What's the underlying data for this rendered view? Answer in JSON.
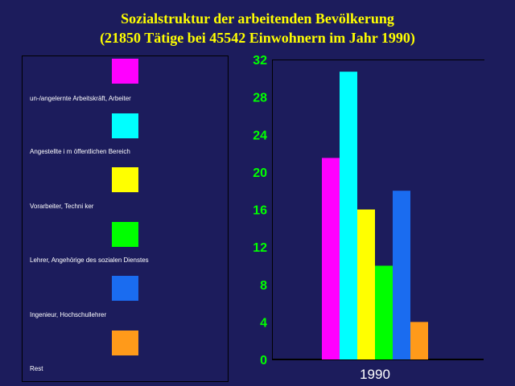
{
  "title_line1": "Sozialstruktur der arbeitenden Bevölkerung",
  "title_line2": "(21850 Tätige bei 45542 Einwohnern im Jahr 1990)",
  "legend": [
    {
      "label": "un-/angelernte Arbeitskräft, Arbeiter",
      "color": "#ff00ff"
    },
    {
      "label": "Angestellte i m öffentlichen Bereich",
      "color": "#00ffff"
    },
    {
      "label": "Vorarbeiter, Techni ker",
      "color": "#ffff00"
    },
    {
      "label": "Lehrer, Angehörige des sozialen Dienstes",
      "color": "#00ff00"
    },
    {
      "label": "Ingenieur, Hochschullehrer",
      "color": "#1a6cf0"
    },
    {
      "label": "Rest",
      "color": "#ff9a1a"
    }
  ],
  "chart_data": {
    "type": "bar",
    "categories": [
      "1990"
    ],
    "series": [
      {
        "name": "un-/angelernte Arbeitskräft, Arbeiter",
        "values": [
          21.5
        ],
        "color": "#ff00ff"
      },
      {
        "name": "Angestellte i m öffentlichen Bereich",
        "values": [
          30.7
        ],
        "color": "#00ffff"
      },
      {
        "name": "Vorarbeiter, Techni ker",
        "values": [
          16
        ],
        "color": "#ffff00"
      },
      {
        "name": "Lehrer, Angehörige des sozialen Dienstes",
        "values": [
          10
        ],
        "color": "#00ff00"
      },
      {
        "name": "Ingenieur, Hochschullehrer",
        "values": [
          18
        ],
        "color": "#1a6cf0"
      },
      {
        "name": "Rest",
        "values": [
          4
        ],
        "color": "#ff9a1a"
      }
    ],
    "ylim": [
      0,
      32
    ],
    "yticks": [
      0,
      4,
      8,
      12,
      16,
      20,
      24,
      28,
      32
    ],
    "xlabel": "",
    "ylabel": "",
    "legend_position": "left",
    "grid": false
  }
}
